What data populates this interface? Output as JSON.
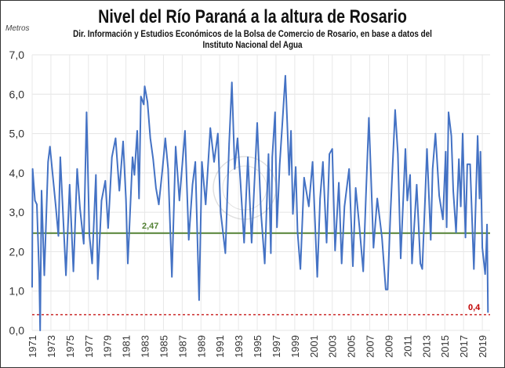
{
  "chart_data": {
    "type": "line",
    "title": "Nivel del Río Paraná a la altura de Rosario",
    "subtitle_line1": "Dir. Información y Estudios Económicos de la Bolsa de Comercio de Rosario, en base a datos del",
    "subtitle_line2": "Instituto Nacional del Agua",
    "ylabel": "Metros",
    "xlabel": "",
    "ylim": [
      0,
      7
    ],
    "xlim": [
      1971,
      2019.8
    ],
    "y_ticks": [
      "0,0",
      "1,0",
      "2,0",
      "3,0",
      "4,0",
      "5,0",
      "6,0",
      "7,0"
    ],
    "x_ticks": [
      "1971",
      "1973",
      "1975",
      "1977",
      "1979",
      "1981",
      "1983",
      "1985",
      "1987",
      "1989",
      "1991",
      "1993",
      "1995",
      "1997",
      "1999",
      "2001",
      "2003",
      "2005",
      "2007",
      "2009",
      "2011",
      "2013",
      "2015",
      "2017",
      "2019"
    ],
    "grid": true,
    "series_color": "#4472C4",
    "reference_lines": [
      {
        "value": 2.47,
        "label": "2,47",
        "color": "#548235",
        "style": "solid"
      },
      {
        "value": 0.4,
        "label": "0,4",
        "color": "#C00000",
        "style": "dashed"
      }
    ],
    "x": [
      1971.0,
      1971.05,
      1971.3,
      1971.5,
      1971.75,
      1971.85,
      1972.0,
      1972.3,
      1972.7,
      1972.9,
      1973.5,
      1973.8,
      1974.0,
      1974.4,
      1974.6,
      1975.0,
      1975.4,
      1975.8,
      1976.1,
      1976.5,
      1976.8,
      1977.1,
      1977.4,
      1977.8,
      1978.0,
      1978.4,
      1978.8,
      1979.1,
      1979.5,
      1979.9,
      1980.3,
      1980.7,
      1981.0,
      1981.2,
      1981.7,
      1981.9,
      1982.2,
      1982.4,
      1982.6,
      1982.9,
      1983.0,
      1983.3,
      1983.6,
      1983.9,
      1984.2,
      1984.5,
      1984.9,
      1985.2,
      1985.5,
      1985.9,
      1986.3,
      1986.7,
      1987.3,
      1987.7,
      1988.1,
      1988.4,
      1988.8,
      1989.1,
      1989.5,
      1990.0,
      1990.4,
      1990.8,
      1991.1,
      1991.6,
      1992.0,
      1992.3,
      1992.6,
      1992.9,
      1993.2,
      1993.6,
      1994.0,
      1994.4,
      1995.0,
      1995.4,
      1995.8,
      1996.2,
      1996.45,
      1996.6,
      1996.9,
      1997.1,
      1997.4,
      1997.7,
      1998.0,
      1998.2,
      1998.4,
      1998.6,
      1998.8,
      1999.1,
      1999.3,
      1999.6,
      2000.0,
      2000.5,
      2000.9,
      2001.4,
      2001.7,
      2002.0,
      2002.4,
      2002.7,
      2003.0,
      2003.3,
      2003.7,
      2004.0,
      2004.3,
      2004.8,
      2005.2,
      2005.5,
      2005.9,
      2006.3,
      2006.6,
      2006.9,
      2007.1,
      2007.4,
      2007.8,
      2008.3,
      2008.7,
      2008.9,
      2009.2,
      2009.7,
      2010.0,
      2010.3,
      2010.8,
      2011.0,
      2011.3,
      2011.5,
      2012.0,
      2012.4,
      2012.6,
      2012.9,
      2013.1,
      2013.5,
      2013.7,
      2014.0,
      2014.4,
      2014.8,
      2015.1,
      2015.2,
      2015.4,
      2015.7,
      2015.9,
      2016.2,
      2016.5,
      2016.7,
      2016.9,
      2017.2,
      2017.4,
      2017.7,
      2018.1,
      2018.5,
      2018.7,
      2018.8,
      2019.0,
      2019.3,
      2019.4,
      2019.5,
      2019.6
    ],
    "y": [
      1.1,
      4.1,
      3.3,
      3.2,
      1.4,
      0.0,
      3.55,
      1.4,
      4.28,
      4.67,
      3.2,
      2.4,
      4.4,
      2.4,
      1.4,
      3.7,
      1.5,
      4.1,
      3.1,
      2.2,
      5.54,
      2.43,
      1.7,
      3.95,
      1.3,
      3.3,
      3.8,
      2.6,
      4.4,
      4.88,
      3.55,
      4.8,
      3.35,
      1.7,
      4.4,
      3.95,
      5.07,
      3.35,
      5.94,
      5.74,
      6.2,
      5.8,
      4.88,
      4.35,
      3.62,
      3.2,
      4.1,
      4.88,
      4.1,
      1.36,
      4.67,
      3.3,
      5.07,
      2.3,
      3.7,
      4.28,
      0.77,
      4.28,
      3.2,
      5.14,
      4.28,
      5.0,
      3.0,
      1.96,
      4.74,
      6.3,
      4.1,
      4.88,
      3.82,
      2.23,
      4.4,
      2.23,
      5.27,
      3.0,
      1.7,
      4.48,
      1.96,
      4.4,
      5.54,
      2.62,
      4.22,
      5.33,
      6.47,
      5.27,
      3.95,
      5.07,
      2.96,
      4.15,
      2.49,
      1.56,
      3.88,
      3.15,
      4.28,
      1.36,
      3.35,
      4.28,
      2.23,
      4.48,
      4.61,
      2.03,
      3.75,
      1.7,
      3.15,
      4.1,
      1.63,
      3.62,
      2.62,
      1.5,
      3.5,
      5.4,
      4.1,
      2.1,
      3.35,
      2.36,
      1.04,
      1.04,
      2.96,
      5.6,
      4.48,
      1.83,
      4.61,
      3.3,
      3.95,
      1.7,
      3.7,
      1.7,
      1.56,
      3.35,
      4.61,
      2.3,
      4.1,
      5.0,
      3.42,
      2.82,
      4.54,
      2.62,
      5.54,
      4.94,
      3.55,
      2.49,
      4.35,
      3.15,
      5.0,
      2.36,
      4.22,
      4.22,
      1.56,
      4.94,
      3.35,
      4.54,
      2.1,
      1.43,
      1.96,
      2.69,
      0.46
    ]
  }
}
